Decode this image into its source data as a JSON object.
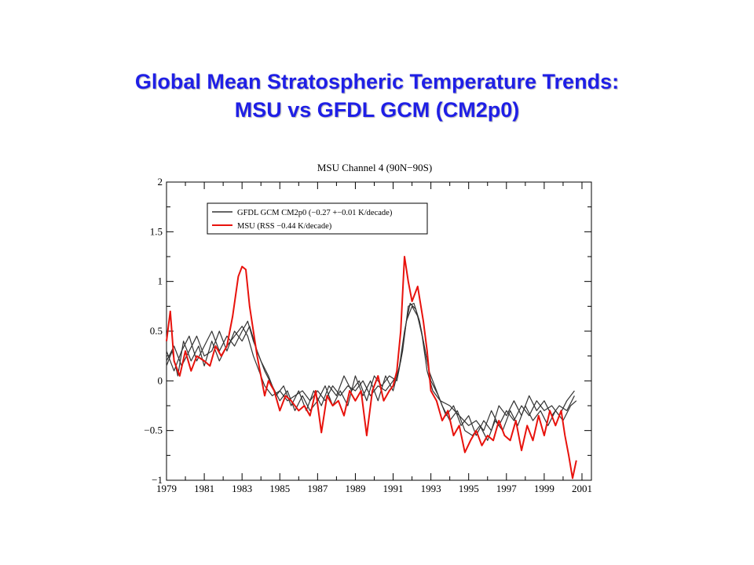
{
  "slide": {
    "title_line1": "Global Mean Stratospheric Temperature Trends:",
    "title_line2": "MSU vs GFDL GCM (CM2p0)"
  },
  "chart_data": {
    "type": "line",
    "title": "MSU Channel 4  (90N−90S)",
    "xlabel": "",
    "ylabel": "",
    "xlim": [
      1979,
      2001.5
    ],
    "ylim": [
      -1,
      2
    ],
    "x_ticks": [
      "1979",
      "1981",
      "1983",
      "1985",
      "1987",
      "1989",
      "1991",
      "1993",
      "1995",
      "1997",
      "1999",
      "2001"
    ],
    "y_ticks": [
      "2",
      "1.5",
      "1",
      "0.5",
      "0",
      "−0.5",
      "−1"
    ],
    "grid": false,
    "legend_position": "top-left",
    "series": [
      {
        "name": "GFDL GCM  CM2p0 (−0.27 +−0.01 K/decade)",
        "color": "#333333",
        "points": [
          [
            1979.0,
            0.15
          ],
          [
            1979.3,
            0.3
          ],
          [
            1979.6,
            0.05
          ],
          [
            1979.9,
            0.4
          ],
          [
            1980.3,
            0.2
          ],
          [
            1980.7,
            0.35
          ],
          [
            1981.0,
            0.15
          ],
          [
            1981.4,
            0.4
          ],
          [
            1981.8,
            0.2
          ],
          [
            1982.2,
            0.35
          ],
          [
            1982.6,
            0.45
          ],
          [
            1983.0,
            0.55
          ],
          [
            1983.3,
            0.45
          ],
          [
            1983.6,
            0.25
          ],
          [
            1983.9,
            0.1
          ],
          [
            1984.2,
            -0.05
          ],
          [
            1984.6,
            -0.15
          ],
          [
            1985.0,
            -0.1
          ],
          [
            1985.4,
            -0.2
          ],
          [
            1985.8,
            -0.15
          ],
          [
            1986.2,
            -0.1
          ],
          [
            1986.6,
            -0.2
          ],
          [
            1987.0,
            -0.1
          ],
          [
            1987.4,
            -0.2
          ],
          [
            1987.8,
            -0.05
          ],
          [
            1988.2,
            -0.15
          ],
          [
            1988.6,
            -0.05
          ],
          [
            1989.0,
            -0.1
          ],
          [
            1989.4,
            0.0
          ],
          [
            1989.8,
            -0.15
          ],
          [
            1990.2,
            -0.05
          ],
          [
            1990.6,
            -0.1
          ],
          [
            1991.0,
            0.0
          ],
          [
            1991.3,
            0.1
          ],
          [
            1991.6,
            0.5
          ],
          [
            1991.9,
            0.78
          ],
          [
            1992.2,
            0.72
          ],
          [
            1992.5,
            0.5
          ],
          [
            1992.8,
            0.1
          ],
          [
            1993.1,
            -0.1
          ],
          [
            1993.5,
            -0.2
          ],
          [
            1994.0,
            -0.25
          ],
          [
            1994.5,
            -0.35
          ],
          [
            1995.0,
            -0.45
          ],
          [
            1995.4,
            -0.4
          ],
          [
            1995.8,
            -0.5
          ],
          [
            1996.2,
            -0.3
          ],
          [
            1996.6,
            -0.45
          ],
          [
            1997.0,
            -0.3
          ],
          [
            1997.4,
            -0.4
          ],
          [
            1997.8,
            -0.25
          ],
          [
            1998.2,
            -0.35
          ],
          [
            1998.6,
            -0.2
          ],
          [
            1999.0,
            -0.3
          ],
          [
            1999.4,
            -0.25
          ],
          [
            1999.8,
            -0.35
          ],
          [
            2000.2,
            -0.2
          ],
          [
            2000.6,
            -0.1
          ]
        ]
      },
      {
        "name": "MSU (RSS −0.44 K/decade)",
        "color": "#e8120c",
        "points": [
          [
            1979.0,
            0.4
          ],
          [
            1979.2,
            0.7
          ],
          [
            1979.4,
            0.2
          ],
          [
            1979.7,
            0.05
          ],
          [
            1980.0,
            0.3
          ],
          [
            1980.3,
            0.1
          ],
          [
            1980.6,
            0.25
          ],
          [
            1981.0,
            0.2
          ],
          [
            1981.3,
            0.15
          ],
          [
            1981.6,
            0.35
          ],
          [
            1981.9,
            0.25
          ],
          [
            1982.2,
            0.35
          ],
          [
            1982.5,
            0.65
          ],
          [
            1982.8,
            1.05
          ],
          [
            1983.0,
            1.15
          ],
          [
            1983.2,
            1.12
          ],
          [
            1983.4,
            0.75
          ],
          [
            1983.6,
            0.5
          ],
          [
            1983.8,
            0.25
          ],
          [
            1984.0,
            0.05
          ],
          [
            1984.2,
            -0.15
          ],
          [
            1984.4,
            0.0
          ],
          [
            1984.7,
            -0.1
          ],
          [
            1985.0,
            -0.3
          ],
          [
            1985.3,
            -0.15
          ],
          [
            1985.6,
            -0.2
          ],
          [
            1986.0,
            -0.3
          ],
          [
            1986.3,
            -0.25
          ],
          [
            1986.6,
            -0.35
          ],
          [
            1986.9,
            -0.1
          ],
          [
            1987.2,
            -0.52
          ],
          [
            1987.5,
            -0.15
          ],
          [
            1987.8,
            -0.25
          ],
          [
            1988.1,
            -0.2
          ],
          [
            1988.4,
            -0.35
          ],
          [
            1988.7,
            -0.1
          ],
          [
            1989.0,
            -0.2
          ],
          [
            1989.3,
            -0.1
          ],
          [
            1989.6,
            -0.55
          ],
          [
            1989.9,
            -0.1
          ],
          [
            1990.2,
            0.05
          ],
          [
            1990.5,
            -0.2
          ],
          [
            1990.8,
            -0.1
          ],
          [
            1991.0,
            -0.05
          ],
          [
            1991.2,
            0.1
          ],
          [
            1991.4,
            0.5
          ],
          [
            1991.6,
            1.25
          ],
          [
            1991.8,
            1.0
          ],
          [
            1992.0,
            0.8
          ],
          [
            1992.3,
            0.95
          ],
          [
            1992.6,
            0.6
          ],
          [
            1992.8,
            0.3
          ],
          [
            1993.0,
            -0.1
          ],
          [
            1993.3,
            -0.2
          ],
          [
            1993.6,
            -0.4
          ],
          [
            1993.9,
            -0.3
          ],
          [
            1994.2,
            -0.55
          ],
          [
            1994.5,
            -0.45
          ],
          [
            1994.8,
            -0.72
          ],
          [
            1995.1,
            -0.6
          ],
          [
            1995.4,
            -0.5
          ],
          [
            1995.7,
            -0.65
          ],
          [
            1996.0,
            -0.55
          ],
          [
            1996.3,
            -0.6
          ],
          [
            1996.6,
            -0.4
          ],
          [
            1996.9,
            -0.55
          ],
          [
            1997.2,
            -0.6
          ],
          [
            1997.5,
            -0.4
          ],
          [
            1997.8,
            -0.7
          ],
          [
            1998.1,
            -0.45
          ],
          [
            1998.4,
            -0.6
          ],
          [
            1998.7,
            -0.35
          ],
          [
            1999.0,
            -0.55
          ],
          [
            1999.3,
            -0.3
          ],
          [
            1999.6,
            -0.45
          ],
          [
            1999.9,
            -0.3
          ],
          [
            2000.1,
            -0.55
          ],
          [
            2000.3,
            -0.75
          ],
          [
            2000.5,
            -0.98
          ],
          [
            2000.7,
            -0.8
          ]
        ]
      },
      {
        "name": "",
        "color": "#333333",
        "points": [
          [
            1979.0,
            0.3
          ],
          [
            1979.4,
            0.1
          ],
          [
            1979.8,
            0.3
          ],
          [
            1980.2,
            0.45
          ],
          [
            1980.6,
            0.2
          ],
          [
            1981.0,
            0.35
          ],
          [
            1981.4,
            0.5
          ],
          [
            1981.8,
            0.3
          ],
          [
            1982.2,
            0.45
          ],
          [
            1982.6,
            0.35
          ],
          [
            1983.0,
            0.5
          ],
          [
            1983.3,
            0.6
          ],
          [
            1983.6,
            0.4
          ],
          [
            1984.0,
            0.2
          ],
          [
            1984.4,
            0.05
          ],
          [
            1984.8,
            -0.15
          ],
          [
            1985.2,
            -0.05
          ],
          [
            1985.6,
            -0.25
          ],
          [
            1986.0,
            -0.1
          ],
          [
            1986.4,
            -0.3
          ],
          [
            1986.8,
            -0.1
          ],
          [
            1987.2,
            -0.25
          ],
          [
            1987.6,
            -0.05
          ],
          [
            1988.0,
            -0.15
          ],
          [
            1988.4,
            0.05
          ],
          [
            1988.8,
            -0.1
          ],
          [
            1989.2,
            0.0
          ],
          [
            1989.6,
            -0.2
          ],
          [
            1990.0,
            0.05
          ],
          [
            1990.4,
            -0.05
          ],
          [
            1990.8,
            0.05
          ],
          [
            1991.2,
            0.0
          ],
          [
            1991.5,
            0.3
          ],
          [
            1991.8,
            0.75
          ],
          [
            1992.1,
            0.78
          ],
          [
            1992.4,
            0.6
          ],
          [
            1992.7,
            0.3
          ],
          [
            1993.0,
            0.0
          ],
          [
            1993.4,
            -0.15
          ],
          [
            1993.8,
            -0.35
          ],
          [
            1994.2,
            -0.25
          ],
          [
            1994.6,
            -0.45
          ],
          [
            1995.0,
            -0.35
          ],
          [
            1995.4,
            -0.55
          ],
          [
            1995.8,
            -0.4
          ],
          [
            1996.2,
            -0.5
          ],
          [
            1996.6,
            -0.25
          ],
          [
            1997.0,
            -0.35
          ],
          [
            1997.4,
            -0.2
          ],
          [
            1997.8,
            -0.35
          ],
          [
            1998.2,
            -0.15
          ],
          [
            1998.6,
            -0.3
          ],
          [
            1999.0,
            -0.2
          ],
          [
            1999.4,
            -0.35
          ],
          [
            1999.8,
            -0.25
          ],
          [
            2000.2,
            -0.3
          ],
          [
            2000.6,
            -0.15
          ]
        ]
      },
      {
        "name": "",
        "color": "#333333",
        "points": [
          [
            1979.0,
            0.2
          ],
          [
            1979.4,
            0.35
          ],
          [
            1979.8,
            0.15
          ],
          [
            1980.2,
            0.3
          ],
          [
            1980.6,
            0.45
          ],
          [
            1981.0,
            0.25
          ],
          [
            1981.4,
            0.3
          ],
          [
            1981.8,
            0.5
          ],
          [
            1982.2,
            0.3
          ],
          [
            1982.6,
            0.5
          ],
          [
            1983.0,
            0.4
          ],
          [
            1983.4,
            0.55
          ],
          [
            1983.8,
            0.3
          ],
          [
            1984.2,
            0.1
          ],
          [
            1984.6,
            -0.05
          ],
          [
            1985.0,
            -0.2
          ],
          [
            1985.4,
            -0.1
          ],
          [
            1985.8,
            -0.3
          ],
          [
            1986.2,
            -0.15
          ],
          [
            1986.6,
            -0.3
          ],
          [
            1987.0,
            -0.2
          ],
          [
            1987.4,
            -0.05
          ],
          [
            1987.8,
            -0.25
          ],
          [
            1988.2,
            -0.1
          ],
          [
            1988.6,
            -0.25
          ],
          [
            1989.0,
            0.05
          ],
          [
            1989.4,
            -0.15
          ],
          [
            1989.8,
            0.0
          ],
          [
            1990.2,
            -0.2
          ],
          [
            1990.6,
            0.05
          ],
          [
            1991.0,
            -0.1
          ],
          [
            1991.4,
            0.2
          ],
          [
            1991.7,
            0.6
          ],
          [
            1992.0,
            0.75
          ],
          [
            1992.3,
            0.65
          ],
          [
            1992.6,
            0.4
          ],
          [
            1992.9,
            0.1
          ],
          [
            1993.2,
            -0.05
          ],
          [
            1993.6,
            -0.25
          ],
          [
            1994.0,
            -0.4
          ],
          [
            1994.4,
            -0.3
          ],
          [
            1994.8,
            -0.5
          ],
          [
            1995.2,
            -0.55
          ],
          [
            1995.6,
            -0.45
          ],
          [
            1996.0,
            -0.6
          ],
          [
            1996.4,
            -0.4
          ],
          [
            1996.8,
            -0.5
          ],
          [
            1997.2,
            -0.3
          ],
          [
            1997.6,
            -0.45
          ],
          [
            1998.0,
            -0.25
          ],
          [
            1998.4,
            -0.4
          ],
          [
            1998.8,
            -0.3
          ],
          [
            1999.2,
            -0.45
          ],
          [
            1999.6,
            -0.3
          ],
          [
            2000.0,
            -0.4
          ],
          [
            2000.4,
            -0.25
          ],
          [
            2000.7,
            -0.2
          ]
        ]
      }
    ]
  }
}
